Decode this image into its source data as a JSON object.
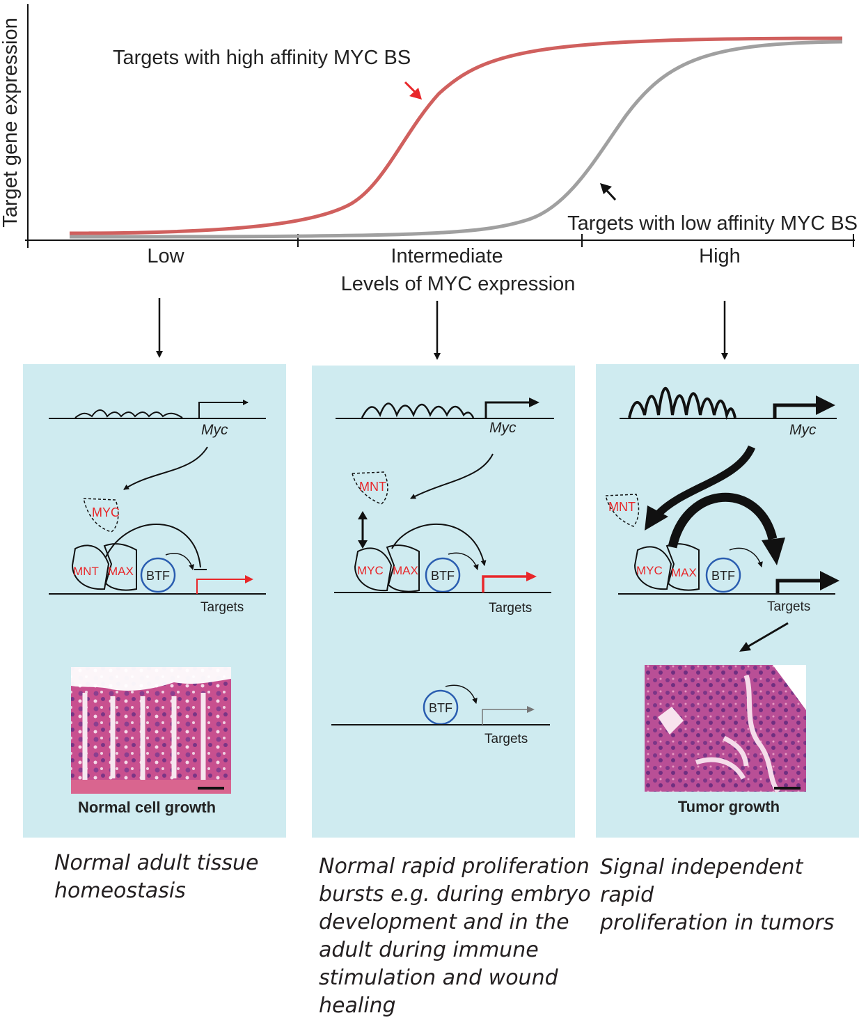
{
  "graph": {
    "ylabel": "Target gene expression",
    "xlabel": "Levels of MYC expression",
    "ticks": [
      "Low",
      "Intermediate",
      "High"
    ],
    "curve_high": {
      "label": "Targets with high affinity MYC BS",
      "color": "#d0605e"
    },
    "curve_low": {
      "label": "Targets with low affinity MYC BS",
      "color": "#a0a0a0"
    },
    "arrow_red": "#e8272a"
  },
  "panels": {
    "bg_color": "#cfebf0",
    "low": {
      "gene": "Myc",
      "free_protein": "MYC",
      "dimer_left": "MNT",
      "dimer_right": "MAX",
      "btf": "BTF",
      "targets": "Targets",
      "histology_label": "Normal cell growth",
      "caption": "Normal adult tissue\n homeostasis"
    },
    "intermediate": {
      "gene": "Myc",
      "free_protein": "MNT",
      "dimer_left": "MYC",
      "dimer_right": "MAX",
      "btf": "BTF",
      "targets": "Targets",
      "btf_2": "BTF",
      "targets_2": "Targets",
      "caption": "Normal rapid proliferation\nbursts e.g. during embryo\ndevelopment and in the\nadult during immune\nstimulation and wound\nhealing"
    },
    "high": {
      "gene": "Myc",
      "free_protein": "MNT",
      "dimer_left": "MYC",
      "dimer_right": "MAX",
      "btf": "BTF",
      "targets": "Targets",
      "histology_label": "Tumor growth",
      "caption": "Signal independent rapid\nproliferation in tumors"
    }
  },
  "colors": {
    "btf_outline": "#2a5db0",
    "protein_text": "#e8272a",
    "histology_pink": "#c8508f",
    "histology_purple": "#8a3f8f"
  }
}
